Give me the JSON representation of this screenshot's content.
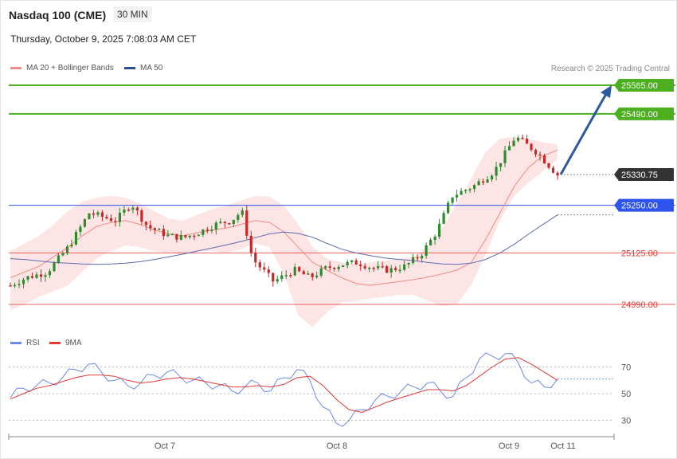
{
  "header": {
    "instrument": "Nasdaq 100 (CME)",
    "timeframe": "30 MIN",
    "datetime": "Thursday, October 9, 2025 7:08:03 AM CET"
  },
  "legend": {
    "ma20_label": "MA 20 + Bollinger Bands",
    "ma50_label": "MA 50",
    "rsi_label": "RSI",
    "rsi_ma_label": "9MA"
  },
  "credit": "Research © 2025 Trading Central",
  "colors": {
    "up": "#2e8b2e",
    "down": "#c62828",
    "resistance": "#4caf1f",
    "pivot": "#2f54eb",
    "support": "#e53935",
    "ma20": "#f28b82",
    "ma50": "#5b6bb0",
    "rsi": "#6a8ae6",
    "rsi_ma": "#e53935",
    "arrow": "#2c5aa0"
  },
  "chart_data": [
    {
      "type": "candlestick",
      "title": "Nasdaq 100 (CME)",
      "timeframe": "30 MIN",
      "ylim": [
        24880,
        25600
      ],
      "x_ticks": [
        "Oct 7",
        "Oct 8",
        "Oct 9",
        "Oct 11"
      ],
      "levels": [
        {
          "value": 25565.0,
          "label": "25565.00",
          "kind": "resistance"
        },
        {
          "value": 25490.0,
          "label": "25490.00",
          "kind": "resistance"
        },
        {
          "value": 25330.75,
          "label": "25330.75",
          "kind": "last"
        },
        {
          "value": 25250.0,
          "label": "25250.00",
          "kind": "pivot"
        },
        {
          "value": 25125.0,
          "label": "25125.00",
          "kind": "support"
        },
        {
          "value": 24990.0,
          "label": "24990.00",
          "kind": "support"
        }
      ],
      "series": [
        {
          "name": "MA 20 + Bollinger Bands",
          "ma": [
            25060,
            25075,
            25090,
            25115,
            25140,
            25170,
            25195,
            25205,
            25210,
            25200,
            25185,
            25175,
            25170,
            25178,
            25185,
            25190,
            25200,
            25210,
            25205,
            25180,
            25140,
            25100,
            25080,
            25060,
            25045,
            25040,
            25045,
            25050,
            25055,
            25062,
            25070,
            25080,
            25100,
            25160,
            25230,
            25300,
            25350,
            25380,
            25395
          ],
          "upper": [
            25130,
            25150,
            25170,
            25200,
            25235,
            25260,
            25270,
            25275,
            25270,
            25255,
            25235,
            25215,
            25210,
            25225,
            25240,
            25250,
            25262,
            25275,
            25272,
            25250,
            25200,
            25140,
            25110,
            25100,
            25095,
            25100,
            25105,
            25110,
            25115,
            25140,
            25190,
            25255,
            25320,
            25390,
            25425,
            25430,
            25425,
            25415,
            25410
          ],
          "lower": [
            24975,
            24990,
            25010,
            25025,
            25040,
            25075,
            25110,
            25130,
            25145,
            25140,
            25130,
            25125,
            25120,
            25130,
            25130,
            25125,
            25135,
            25150,
            25140,
            25070,
            24960,
            24930,
            24970,
            24995,
            25000,
            25005,
            25010,
            25015,
            25015,
            25000,
            24985,
            24990,
            25040,
            25120,
            25210,
            25275,
            25310,
            25340,
            25370
          ]
        },
        {
          "name": "MA 50",
          "values": [
            25110,
            25108,
            25104,
            25100,
            25098,
            25096,
            25095,
            25096,
            25098,
            25102,
            25108,
            25115,
            25122,
            25130,
            25138,
            25146,
            25155,
            25165,
            25175,
            25180,
            25176,
            25166,
            25150,
            25135,
            25125,
            25118,
            25112,
            25108,
            25105,
            25100,
            25096,
            25095,
            25098,
            25108,
            25125,
            25148,
            25175,
            25200,
            25225
          ]
        },
        {
          "name": "RSI",
          "values": [
            47,
            54,
            56,
            58,
            62,
            68,
            72,
            66,
            60,
            56,
            58,
            64,
            66,
            63,
            60,
            58,
            56,
            52,
            55,
            58,
            52,
            62,
            68,
            60,
            40,
            28,
            30,
            38,
            45,
            48,
            52,
            55,
            58,
            52,
            48,
            62,
            76,
            78,
            80,
            73,
            58,
            55,
            61
          ]
        },
        {
          "name": "9MA",
          "values": [
            46,
            50,
            54,
            56,
            59,
            62,
            64,
            64,
            63,
            60,
            58,
            59,
            61,
            62,
            61,
            59,
            57,
            55,
            55,
            56,
            55,
            57,
            62,
            63,
            56,
            46,
            38,
            36,
            40,
            44,
            47,
            50,
            53,
            53,
            52,
            56,
            63,
            70,
            76,
            77,
            72,
            66,
            60
          ]
        }
      ],
      "rsi_levels": [
        70,
        50,
        30
      ]
    }
  ]
}
